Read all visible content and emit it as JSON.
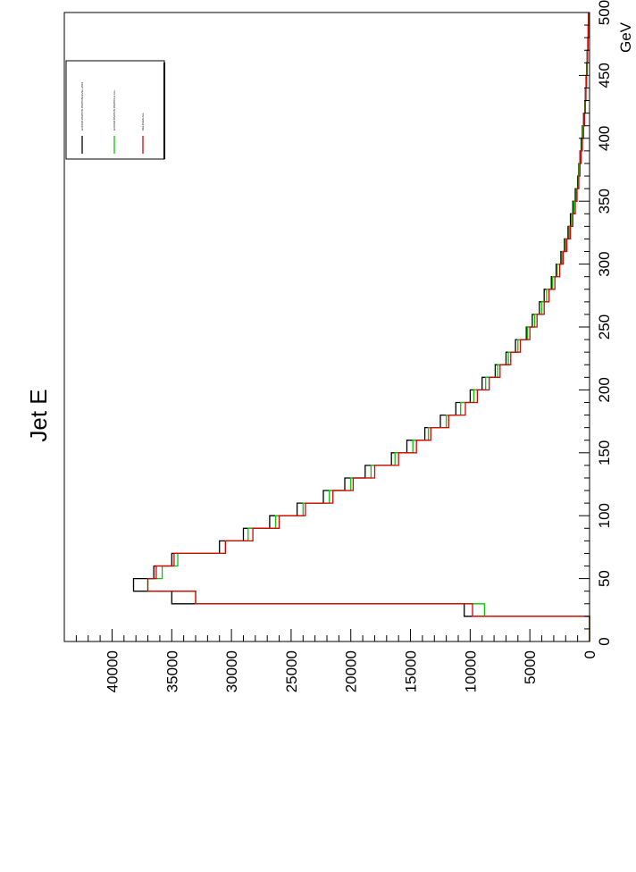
{
  "chart_data": {
    "type": "line",
    "title": "Jet E",
    "xlabel": "GeV",
    "ylabel": "",
    "orientation": "rotated-90-counterclockwise",
    "xlim": [
      0,
      500
    ],
    "ylim": [
      0,
      44000
    ],
    "x_ticks": [
      "0",
      "50",
      "100",
      "150",
      "200",
      "250",
      "300",
      "350",
      "400",
      "450",
      "500"
    ],
    "y_ticks": [
      "0",
      "5000",
      "10000",
      "15000",
      "20000",
      "25000",
      "30000",
      "35000",
      "40000"
    ],
    "bin_edges": [
      0,
      10,
      20,
      30,
      40,
      50,
      60,
      70,
      80,
      90,
      100,
      110,
      120,
      130,
      140,
      150,
      160,
      170,
      180,
      190,
      200,
      210,
      220,
      230,
      240,
      250,
      260,
      270,
      280,
      290,
      300,
      310,
      320,
      330,
      340,
      350,
      360,
      370,
      380,
      390,
      400,
      410,
      420,
      430,
      440,
      450,
      460,
      470,
      480,
      490,
      500
    ],
    "series": [
      {
        "name": "EXCOM PARTON PARTONLEVEL+PHS",
        "color": "#000000",
        "values": [
          0,
          0,
          10500,
          35000,
          38200,
          36500,
          35000,
          31000,
          29000,
          26800,
          24500,
          22300,
          20500,
          18800,
          16600,
          15300,
          13800,
          12500,
          11200,
          10000,
          9000,
          7900,
          7000,
          6200,
          5300,
          4800,
          4200,
          3800,
          3200,
          2800,
          2400,
          2100,
          1800,
          1600,
          1400,
          1200,
          1000,
          900,
          800,
          700,
          600,
          500,
          400,
          350,
          300,
          250,
          200,
          150,
          120,
          100
        ]
      },
      {
        "name": "EXCOM PARTON PARTICLE ALL",
        "color": "#00cc00",
        "values": [
          0,
          0,
          8800,
          33000,
          37000,
          35800,
          34500,
          30500,
          28600,
          26300,
          24000,
          21800,
          20000,
          18300,
          16300,
          14800,
          13500,
          12000,
          10800,
          9700,
          8700,
          7700,
          6800,
          6000,
          5200,
          4600,
          4000,
          3600,
          3100,
          2700,
          2300,
          2000,
          1700,
          1500,
          1300,
          1100,
          950,
          850,
          750,
          650,
          550,
          450,
          380,
          320,
          280,
          230,
          180,
          140,
          110,
          90
        ]
      },
      {
        "name": "DELPHES ALL",
        "color": "#dd0000",
        "values": [
          0,
          0,
          9800,
          33000,
          37000,
          36300,
          34800,
          30500,
          28200,
          26000,
          23800,
          21500,
          19800,
          18000,
          16000,
          14500,
          13300,
          11800,
          10400,
          9400,
          8400,
          7500,
          6600,
          5800,
          5000,
          4400,
          3800,
          3400,
          2900,
          2500,
          2200,
          1900,
          1600,
          1400,
          1200,
          1050,
          900,
          800,
          700,
          600,
          500,
          420,
          350,
          300,
          250,
          200,
          160,
          130,
          100,
          80
        ]
      }
    ],
    "legend": {
      "position": "top-right",
      "entries": [
        "EXCOM PARTON PARTONLEVEL+PHS",
        "EXCOM PARTON PARTICLE ALL",
        "DELPHES ALL"
      ]
    },
    "grid": false
  }
}
